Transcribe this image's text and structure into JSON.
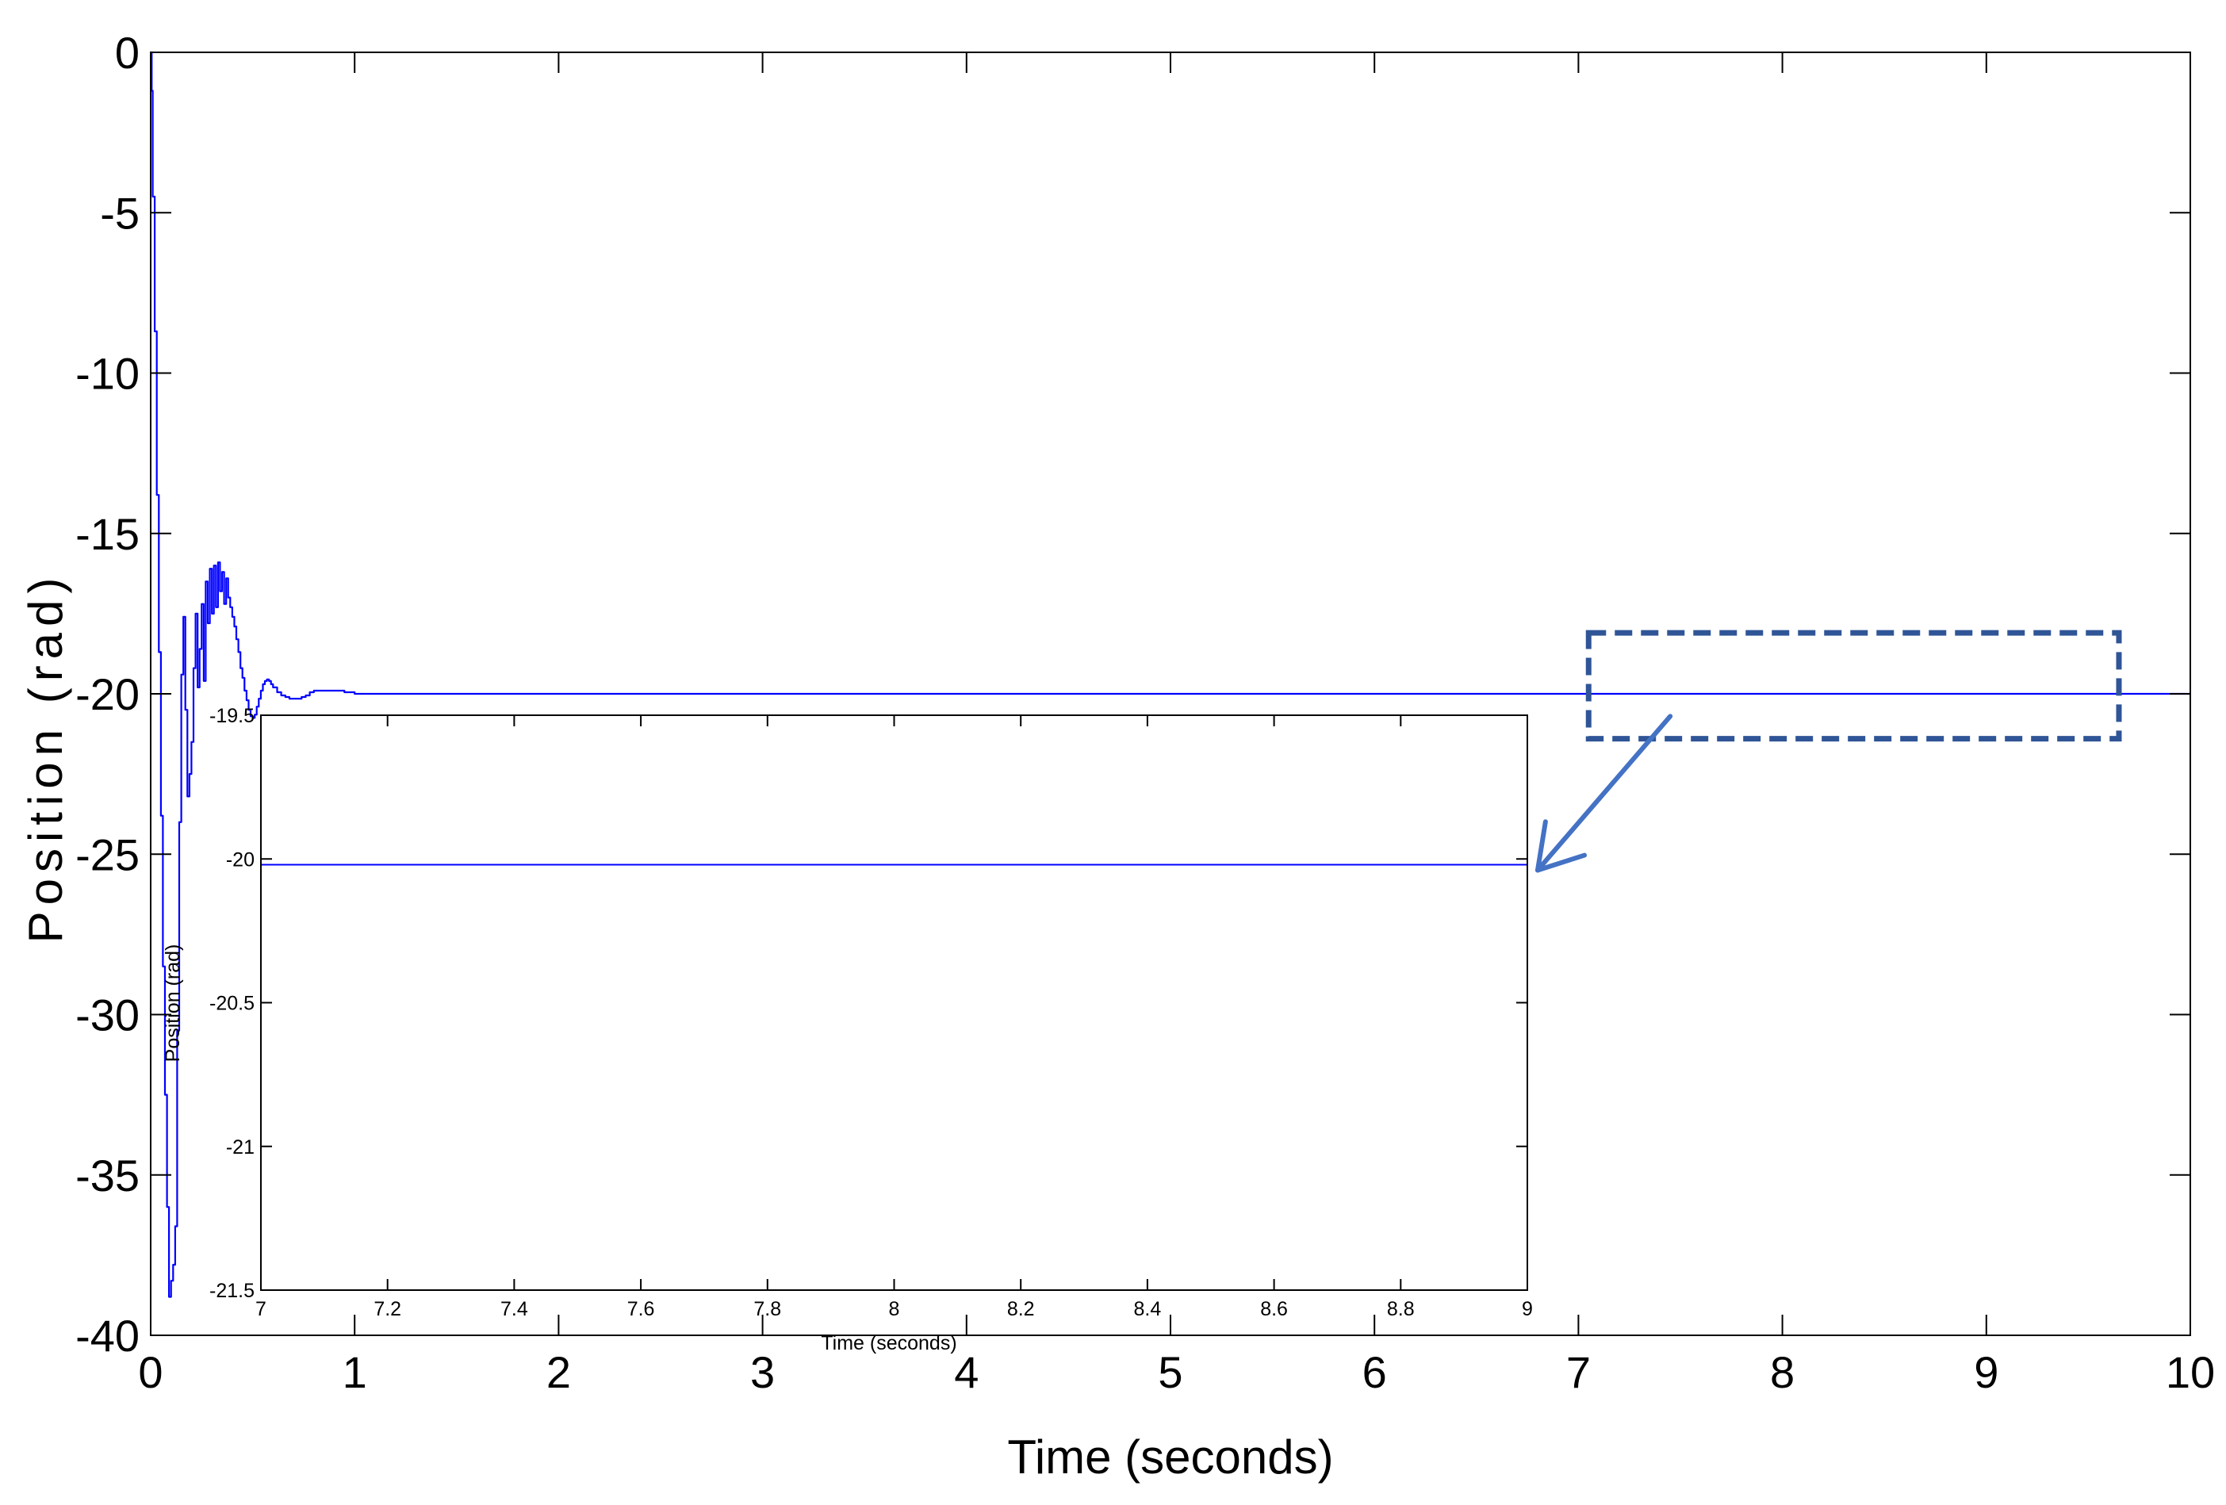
{
  "chart_data": [
    {
      "id": "main",
      "type": "line",
      "title": "",
      "xlabel": "Time (seconds)",
      "ylabel": "Position (rad)",
      "xlim": [
        0,
        10
      ],
      "ylim": [
        -40,
        0
      ],
      "xticks": [
        0,
        1,
        2,
        3,
        4,
        5,
        6,
        7,
        8,
        9,
        10
      ],
      "yticks": [
        0,
        -5,
        -10,
        -15,
        -20,
        -25,
        -30,
        -35,
        -40
      ],
      "grid": false,
      "legend": "none",
      "series": [
        {
          "color": "#0000ff",
          "step": true,
          "x": [
            0,
            0.005,
            0.01,
            0.02,
            0.03,
            0.04,
            0.05,
            0.06,
            0.07,
            0.08,
            0.09,
            0.1,
            0.11,
            0.12,
            0.13,
            0.14,
            0.15,
            0.16,
            0.17,
            0.18,
            0.19,
            0.2,
            0.21,
            0.22,
            0.23,
            0.24,
            0.25,
            0.26,
            0.27,
            0.28,
            0.29,
            0.3,
            0.31,
            0.32,
            0.33,
            0.34,
            0.35,
            0.36,
            0.37,
            0.38,
            0.39,
            0.4,
            0.41,
            0.42,
            0.43,
            0.44,
            0.45,
            0.46,
            0.47,
            0.48,
            0.49,
            0.5,
            0.51,
            0.52,
            0.53,
            0.54,
            0.55,
            0.56,
            0.57,
            0.58,
            0.59,
            0.6,
            0.62,
            0.64,
            0.66,
            0.68,
            0.7,
            0.72,
            0.74,
            0.76,
            0.78,
            0.8,
            0.85,
            0.9,
            0.95,
            1.0,
            1.05,
            1.1,
            1.15,
            1.2,
            1.25,
            1.3,
            1.35,
            1.4,
            1.45,
            1.5,
            1.55,
            1.6,
            1.7,
            1.8,
            1.9,
            2.0,
            2.1,
            2.2,
            2.3,
            2.5,
            3,
            4,
            5,
            6,
            7,
            8,
            9,
            10
          ],
          "y": [
            0,
            -1.2,
            -4.5,
            -8.7,
            -13.8,
            -18.7,
            -23.8,
            -28.5,
            -32.5,
            -36,
            -38.8,
            -38.3,
            -37.8,
            -36.6,
            -30.5,
            -24,
            -19.4,
            -17.6,
            -20.5,
            -23.2,
            -22.5,
            -21.5,
            -19.2,
            -17.5,
            -19.8,
            -18.6,
            -17.2,
            -19.6,
            -16.5,
            -17.8,
            -16.1,
            -17.5,
            -16,
            -17.3,
            -15.9,
            -16.8,
            -16.2,
            -17.2,
            -16.4,
            -17,
            -17.3,
            -17.6,
            -17.9,
            -18.3,
            -18.7,
            -19.2,
            -19.5,
            -19.9,
            -20.2,
            -20.5,
            -20.7,
            -20.75,
            -20.65,
            -20.4,
            -20.15,
            -19.9,
            -19.7,
            -19.6,
            -19.55,
            -19.6,
            -19.7,
            -19.8,
            -19.95,
            -20.05,
            -20.1,
            -20.15,
            -20.15,
            -20.15,
            -20.1,
            -20.05,
            -19.95,
            -19.9,
            -19.9,
            -19.9,
            -19.95,
            -20,
            -20,
            -20,
            -20,
            -20,
            -20,
            -20,
            -20,
            -20,
            -20,
            -20,
            -20,
            -20,
            -20,
            -20,
            -20,
            -20,
            -20,
            -20,
            -20,
            -20,
            -20,
            -20,
            -20,
            -20,
            -20,
            -20,
            -20,
            -20
          ]
        }
      ]
    },
    {
      "id": "inset",
      "type": "line",
      "title": "",
      "xlabel": "Time (seconds)",
      "ylabel": "Position (rad)",
      "xlim": [
        7,
        9
      ],
      "ylim": [
        -21.5,
        -19.5
      ],
      "xticks": [
        7,
        7.2,
        7.4,
        7.6,
        7.8,
        8,
        8.2,
        8.4,
        8.6,
        8.8,
        9
      ],
      "yticks": [
        -19.5,
        -20,
        -20.5,
        -21,
        -21.5
      ],
      "grid": false,
      "legend": "none",
      "series": [
        {
          "color": "#0000ff",
          "x": [
            7,
            9
          ],
          "y": [
            -20.02,
            -20.02
          ]
        }
      ]
    }
  ],
  "annotations": {
    "zoom_box": {
      "x_range": [
        7.05,
        9.65
      ],
      "y_range": [
        -18.1,
        -21.4
      ],
      "color": "#2f5597",
      "style": "dashed"
    },
    "arrow": {
      "from": [
        7.45,
        -20.7
      ],
      "to": [
        6.8,
        -25.5
      ],
      "color": "#4472c4"
    }
  }
}
